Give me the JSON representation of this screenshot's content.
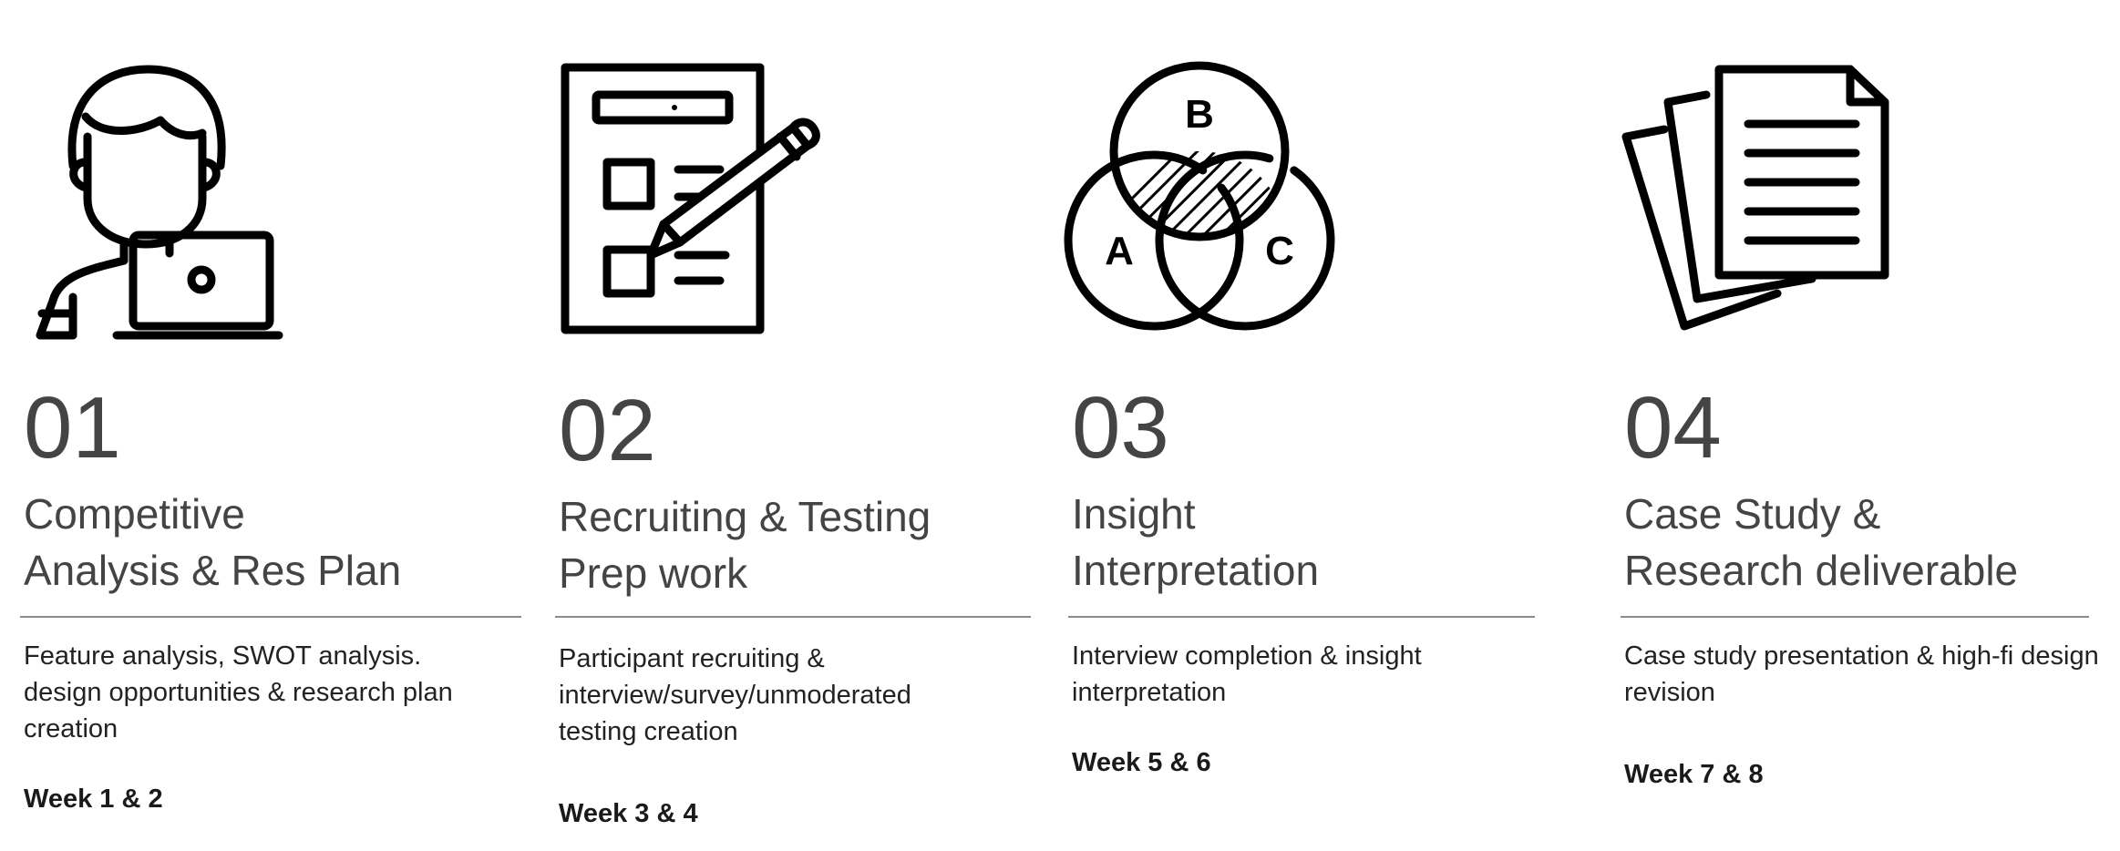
{
  "steps": [
    {
      "number": "01",
      "title_lines": [
        "Competitive",
        "Analysis & Res Plan"
      ],
      "description_lines": [
        "Feature analysis, SWOT analysis.",
        "design opportunities & research plan",
        "creation"
      ],
      "week": "Week 1 & 2",
      "icon": "researcher-laptop-icon"
    },
    {
      "number": "02",
      "title_lines": [
        "Recruiting & Testing",
        "Prep work"
      ],
      "description_lines": [
        "Participant recruiting &",
        "interview/survey/unmoderated",
        "testing creation"
      ],
      "week": "Week 3 & 4",
      "icon": "checklist-pencil-icon"
    },
    {
      "number": "03",
      "title_lines": [
        "Insight",
        "Interpretation"
      ],
      "description_lines": [
        "Interview completion & insight",
        "interpretation"
      ],
      "week": "Week 5 & 6",
      "icon": "venn-diagram-icon",
      "venn_labels": [
        "A",
        "B",
        "C"
      ]
    },
    {
      "number": "04",
      "title_lines": [
        "Case Study &",
        "Research deliverable"
      ],
      "description_lines": [
        "Case study presentation & high-fi design",
        "revision"
      ],
      "week": "Week 7 & 8",
      "icon": "documents-stack-icon"
    }
  ],
  "colors": {
    "text_heading": "#444444",
    "text_body": "#222222",
    "icon_stroke": "#000000",
    "divider": "#8c8c8c"
  }
}
